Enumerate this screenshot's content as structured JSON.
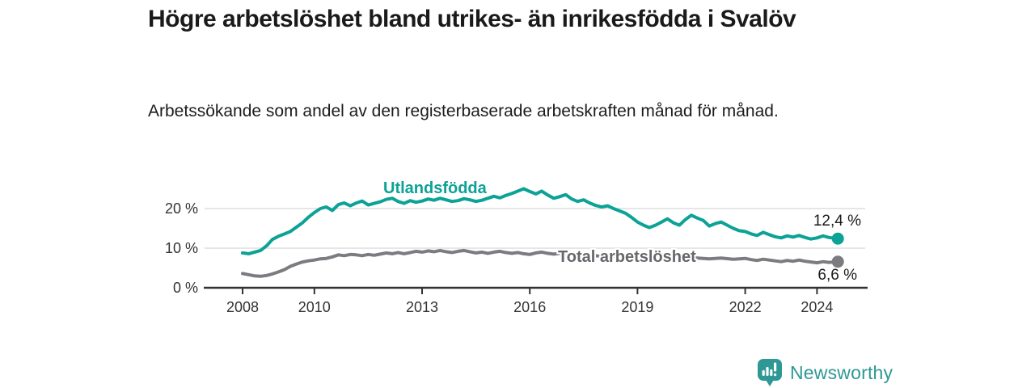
{
  "chart_data": {
    "type": "line",
    "title": "Högre arbetslöshet bland utrikes- än inrikesfödda i Svalöv",
    "subtitle": "Arbetssökande som andel av den registerbaserade arbetskraften månad för månad.",
    "unit": "%",
    "x_axis": {
      "ticks": [
        "2008",
        "2010",
        "2013",
        "2016",
        "2019",
        "2022",
        "2024"
      ],
      "range": [
        2007.0,
        2025.4
      ],
      "grid": false
    },
    "y_axis": {
      "ticks": [
        {
          "value": 0,
          "label": "0 %"
        },
        {
          "value": 10,
          "label": "10 %"
        },
        {
          "value": 20,
          "label": "20 %"
        }
      ],
      "range": [
        0,
        27
      ],
      "grid": true
    },
    "style": {
      "axis_color": "#333333",
      "grid_color": "#d6d6d6",
      "tick_text_color": "#333333",
      "annotation_color": "#1a1a1a"
    },
    "legend_position": "inline-labels",
    "series": [
      {
        "name": "Utlandsfödda",
        "color": "#0da296",
        "label_color": "#0da296",
        "end_label": "12,4 %",
        "end_value": 12.4,
        "points": [
          [
            2008.0,
            8.8
          ],
          [
            2008.17,
            8.6
          ],
          [
            2008.33,
            9.0
          ],
          [
            2008.5,
            9.4
          ],
          [
            2008.67,
            10.6
          ],
          [
            2008.83,
            12.2
          ],
          [
            2009.0,
            13.0
          ],
          [
            2009.17,
            13.6
          ],
          [
            2009.33,
            14.2
          ],
          [
            2009.5,
            15.3
          ],
          [
            2009.67,
            16.4
          ],
          [
            2009.83,
            17.8
          ],
          [
            2010.0,
            19.0
          ],
          [
            2010.17,
            20.0
          ],
          [
            2010.33,
            20.4
          ],
          [
            2010.5,
            19.5
          ],
          [
            2010.67,
            21.0
          ],
          [
            2010.83,
            21.4
          ],
          [
            2011.0,
            20.7
          ],
          [
            2011.17,
            21.4
          ],
          [
            2011.33,
            21.9
          ],
          [
            2011.5,
            20.9
          ],
          [
            2011.67,
            21.3
          ],
          [
            2011.83,
            21.7
          ],
          [
            2012.0,
            22.3
          ],
          [
            2012.17,
            22.6
          ],
          [
            2012.33,
            21.8
          ],
          [
            2012.5,
            21.3
          ],
          [
            2012.67,
            22.0
          ],
          [
            2012.83,
            21.6
          ],
          [
            2013.0,
            21.9
          ],
          [
            2013.17,
            22.4
          ],
          [
            2013.33,
            22.1
          ],
          [
            2013.5,
            22.6
          ],
          [
            2013.67,
            22.2
          ],
          [
            2013.83,
            21.8
          ],
          [
            2014.0,
            22.0
          ],
          [
            2014.17,
            22.5
          ],
          [
            2014.33,
            22.2
          ],
          [
            2014.5,
            21.8
          ],
          [
            2014.67,
            22.1
          ],
          [
            2014.83,
            22.6
          ],
          [
            2015.0,
            23.1
          ],
          [
            2015.17,
            22.7
          ],
          [
            2015.33,
            23.3
          ],
          [
            2015.5,
            23.8
          ],
          [
            2015.67,
            24.4
          ],
          [
            2015.83,
            25.0
          ],
          [
            2016.0,
            24.3
          ],
          [
            2016.17,
            23.7
          ],
          [
            2016.33,
            24.4
          ],
          [
            2016.5,
            23.4
          ],
          [
            2016.67,
            22.6
          ],
          [
            2016.83,
            23.0
          ],
          [
            2017.0,
            23.5
          ],
          [
            2017.17,
            22.4
          ],
          [
            2017.33,
            21.8
          ],
          [
            2017.5,
            22.2
          ],
          [
            2017.67,
            21.4
          ],
          [
            2017.83,
            20.8
          ],
          [
            2018.0,
            20.4
          ],
          [
            2018.17,
            20.7
          ],
          [
            2018.33,
            20.0
          ],
          [
            2018.5,
            19.4
          ],
          [
            2018.67,
            18.8
          ],
          [
            2018.83,
            17.8
          ],
          [
            2019.0,
            16.6
          ],
          [
            2019.17,
            15.8
          ],
          [
            2019.33,
            15.2
          ],
          [
            2019.5,
            15.8
          ],
          [
            2019.67,
            16.6
          ],
          [
            2019.83,
            17.4
          ],
          [
            2020.0,
            16.4
          ],
          [
            2020.17,
            15.8
          ],
          [
            2020.33,
            17.2
          ],
          [
            2020.5,
            18.3
          ],
          [
            2020.67,
            17.6
          ],
          [
            2020.83,
            17.0
          ],
          [
            2021.0,
            15.6
          ],
          [
            2021.17,
            16.2
          ],
          [
            2021.33,
            16.6
          ],
          [
            2021.5,
            15.8
          ],
          [
            2021.67,
            15.0
          ],
          [
            2021.83,
            14.4
          ],
          [
            2022.0,
            14.2
          ],
          [
            2022.17,
            13.6
          ],
          [
            2022.33,
            13.2
          ],
          [
            2022.5,
            14.0
          ],
          [
            2022.67,
            13.4
          ],
          [
            2022.83,
            12.9
          ],
          [
            2023.0,
            12.6
          ],
          [
            2023.17,
            13.1
          ],
          [
            2023.33,
            12.8
          ],
          [
            2023.5,
            13.2
          ],
          [
            2023.67,
            12.7
          ],
          [
            2023.83,
            12.3
          ],
          [
            2024.0,
            12.6
          ],
          [
            2024.17,
            13.1
          ],
          [
            2024.33,
            12.7
          ],
          [
            2024.58,
            12.4
          ]
        ]
      },
      {
        "name": "Total arbetslöshet",
        "color": "#7b7b80",
        "label_color": "#67676c",
        "end_label": "6,6 %",
        "end_value": 6.6,
        "points": [
          [
            2008.0,
            3.6
          ],
          [
            2008.17,
            3.3
          ],
          [
            2008.33,
            3.0
          ],
          [
            2008.5,
            2.9
          ],
          [
            2008.67,
            3.1
          ],
          [
            2008.83,
            3.5
          ],
          [
            2009.0,
            4.0
          ],
          [
            2009.17,
            4.6
          ],
          [
            2009.33,
            5.4
          ],
          [
            2009.5,
            6.0
          ],
          [
            2009.67,
            6.5
          ],
          [
            2009.83,
            6.8
          ],
          [
            2010.0,
            7.0
          ],
          [
            2010.17,
            7.3
          ],
          [
            2010.33,
            7.4
          ],
          [
            2010.5,
            7.8
          ],
          [
            2010.67,
            8.3
          ],
          [
            2010.83,
            8.1
          ],
          [
            2011.0,
            8.4
          ],
          [
            2011.17,
            8.3
          ],
          [
            2011.33,
            8.1
          ],
          [
            2011.5,
            8.4
          ],
          [
            2011.67,
            8.2
          ],
          [
            2011.83,
            8.5
          ],
          [
            2012.0,
            8.8
          ],
          [
            2012.17,
            8.6
          ],
          [
            2012.33,
            8.9
          ],
          [
            2012.5,
            8.6
          ],
          [
            2012.67,
            8.9
          ],
          [
            2012.83,
            9.2
          ],
          [
            2013.0,
            9.0
          ],
          [
            2013.17,
            9.3
          ],
          [
            2013.33,
            9.1
          ],
          [
            2013.5,
            9.4
          ],
          [
            2013.67,
            9.1
          ],
          [
            2013.83,
            8.9
          ],
          [
            2014.0,
            9.2
          ],
          [
            2014.17,
            9.4
          ],
          [
            2014.33,
            9.1
          ],
          [
            2014.5,
            8.8
          ],
          [
            2014.67,
            9.0
          ],
          [
            2014.83,
            8.7
          ],
          [
            2015.0,
            9.0
          ],
          [
            2015.17,
            9.2
          ],
          [
            2015.33,
            8.9
          ],
          [
            2015.5,
            8.7
          ],
          [
            2015.67,
            8.9
          ],
          [
            2015.83,
            8.6
          ],
          [
            2016.0,
            8.4
          ],
          [
            2016.17,
            8.8
          ],
          [
            2016.33,
            9.0
          ],
          [
            2016.5,
            8.7
          ],
          [
            2016.67,
            8.5
          ],
          [
            2016.83,
            8.7
          ],
          [
            2017.0,
            8.4
          ],
          [
            2017.17,
            8.2
          ],
          [
            2017.33,
            8.4
          ],
          [
            2017.5,
            8.1
          ],
          [
            2017.67,
            7.9
          ],
          [
            2017.83,
            8.1
          ],
          [
            2018.0,
            7.9
          ],
          [
            2018.33,
            8.0
          ],
          [
            2018.67,
            7.8
          ],
          [
            2019.0,
            7.6
          ],
          [
            2019.33,
            7.5
          ],
          [
            2019.67,
            7.7
          ],
          [
            2020.0,
            7.6
          ],
          [
            2020.17,
            7.9
          ],
          [
            2020.33,
            7.7
          ],
          [
            2020.67,
            7.5
          ],
          [
            2021.0,
            7.3
          ],
          [
            2021.33,
            7.5
          ],
          [
            2021.67,
            7.2
          ],
          [
            2022.0,
            7.4
          ],
          [
            2022.17,
            7.1
          ],
          [
            2022.33,
            6.9
          ],
          [
            2022.5,
            7.2
          ],
          [
            2022.67,
            7.0
          ],
          [
            2022.83,
            6.8
          ],
          [
            2023.0,
            6.6
          ],
          [
            2023.17,
            6.9
          ],
          [
            2023.33,
            6.7
          ],
          [
            2023.5,
            7.0
          ],
          [
            2023.67,
            6.7
          ],
          [
            2023.83,
            6.5
          ],
          [
            2024.0,
            6.3
          ],
          [
            2024.17,
            6.6
          ],
          [
            2024.33,
            6.4
          ],
          [
            2024.58,
            6.6
          ]
        ]
      }
    ]
  },
  "branding": {
    "logo_text": "Newsworthy",
    "logo_icon": "newsworthy-bar-chart-bubble-icon",
    "brand_color": "#2e9894"
  }
}
